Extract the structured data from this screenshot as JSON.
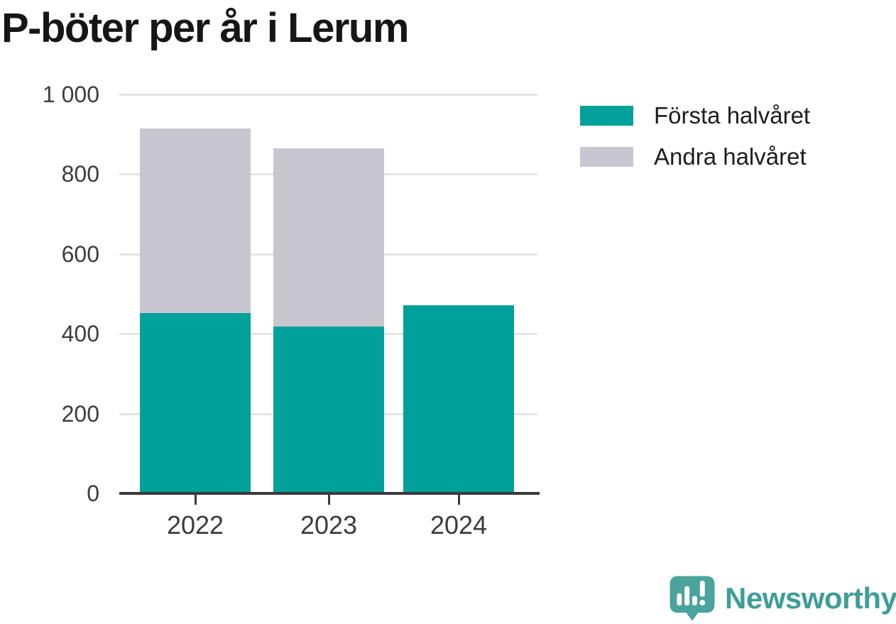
{
  "chart_data": {
    "type": "bar",
    "stacked": true,
    "title": "P-böter per år i Lerum",
    "categories": [
      "2022",
      "2023",
      "2024"
    ],
    "series": [
      {
        "name": "Första halvåret",
        "color": "#00a19a",
        "values": [
          450,
          416,
          470
        ]
      },
      {
        "name": "Andra halvåret",
        "color": "#c8c7cf",
        "values": [
          463,
          447,
          null
        ]
      }
    ],
    "xlabel": "",
    "ylabel": "",
    "ylim": [
      0,
      1000
    ],
    "yticks": [
      {
        "value": 0,
        "label": "0"
      },
      {
        "value": 200,
        "label": "200"
      },
      {
        "value": 400,
        "label": "400"
      },
      {
        "value": 600,
        "label": "600"
      },
      {
        "value": 800,
        "label": "800"
      },
      {
        "value": 1000,
        "label": "1 000"
      }
    ],
    "grid": true,
    "legend_position": "top-right"
  },
  "legend": {
    "items": [
      {
        "label": "Första halvåret",
        "color": "#00a19a"
      },
      {
        "label": "Andra halvåret",
        "color": "#c8c7cf"
      }
    ]
  },
  "branding": {
    "logo_text": "Newsworthy",
    "logo_text_color": "#3e9e98",
    "logo_mark_color": "#4aa39c"
  },
  "colors": {
    "axis": "#3a3a3a",
    "grid": "#e4e4e4",
    "tick_text": "#3c3c3c",
    "title_text": "#161616"
  }
}
